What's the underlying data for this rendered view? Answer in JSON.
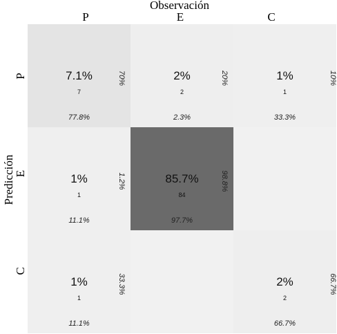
{
  "chart_data": {
    "type": "heatmap",
    "title": "",
    "xlabel": "Observación",
    "ylabel": "Predicción",
    "x_categories": [
      "P",
      "E",
      "C"
    ],
    "y_categories": [
      "P",
      "E",
      "C"
    ],
    "cells": [
      [
        {
          "percent": "7.1%",
          "count": "7",
          "col_pct": "77.8%",
          "row_pct": "70%",
          "shade": 0.12
        },
        {
          "percent": "2%",
          "count": "2",
          "col_pct": "2.3%",
          "row_pct": "20%",
          "shade": 0.05
        },
        {
          "percent": "1%",
          "count": "1",
          "col_pct": "33.3%",
          "row_pct": "10%",
          "shade": 0.04
        }
      ],
      [
        {
          "percent": "1%",
          "count": "1",
          "col_pct": "11.1%",
          "row_pct": "1.2%",
          "shade": 0.04
        },
        {
          "percent": "85.7%",
          "count": "84",
          "col_pct": "97.7%",
          "row_pct": "98.8%",
          "shade": 1.0
        },
        {
          "percent": "",
          "count": "",
          "col_pct": "",
          "row_pct": "",
          "shade": 0.03
        }
      ],
      [
        {
          "percent": "1%",
          "count": "1",
          "col_pct": "11.1%",
          "row_pct": "33.3%",
          "shade": 0.04
        },
        {
          "percent": "",
          "count": "",
          "col_pct": "",
          "row_pct": "",
          "shade": 0.03
        },
        {
          "percent": "2%",
          "count": "2",
          "col_pct": "66.7%",
          "row_pct": "66.7%",
          "shade": 0.05
        }
      ]
    ]
  }
}
